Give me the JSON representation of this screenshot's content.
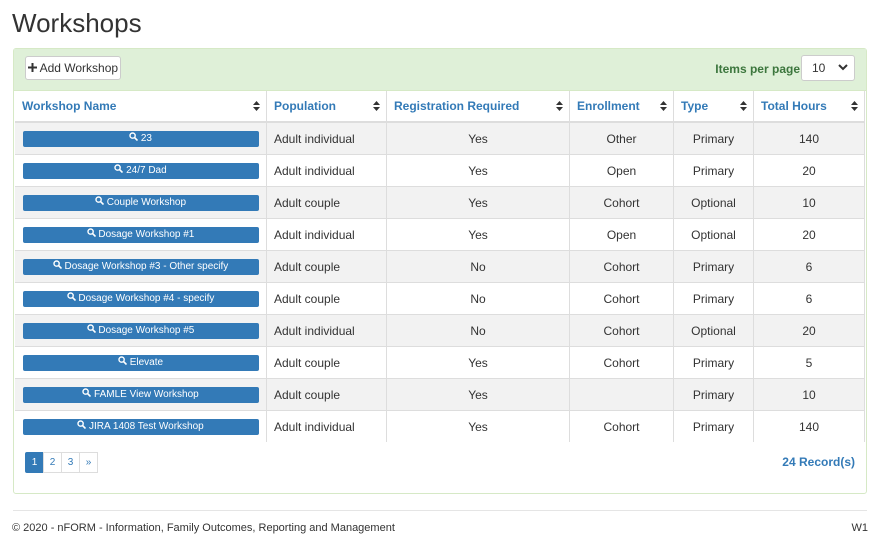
{
  "header": {
    "title": "Workshops"
  },
  "toolbar": {
    "add_button": "Add Workshop",
    "items_per_page_label": "Items per page",
    "items_per_page": 10
  },
  "table": {
    "columns": [
      "Workshop Name",
      "Population",
      "Registration Required",
      "Enrollment",
      "Type",
      "Total Hours"
    ],
    "rows": [
      [
        "23",
        "Adult individual",
        "Yes",
        "Other",
        "Primary",
        140
      ],
      [
        "24/7 Dad",
        "Adult individual",
        "Yes",
        "Open",
        "Primary",
        20
      ],
      [
        "Couple Workshop",
        "Adult couple",
        "Yes",
        "Cohort",
        "Optional",
        10
      ],
      [
        "Dosage Workshop #1",
        "Adult individual",
        "Yes",
        "Open",
        "Optional",
        20
      ],
      [
        "Dosage Workshop #3 - Other specify",
        "Adult couple",
        "No",
        "Cohort",
        "Primary",
        6
      ],
      [
        "Dosage Workshop #4 - specify",
        "Adult couple",
        "No",
        "Cohort",
        "Primary",
        6
      ],
      [
        "Dosage Workshop #5",
        "Adult individual",
        "No",
        "Cohort",
        "Optional",
        20
      ],
      [
        "Elevate",
        "Adult couple",
        "Yes",
        "Cohort",
        "Primary",
        5
      ],
      [
        "FAMLE View Workshop",
        "Adult couple",
        "Yes",
        null,
        "Primary",
        10
      ],
      [
        "JIRA 1408 Test Workshop",
        "Adult individual",
        "Yes",
        "Cohort",
        "Primary",
        140
      ]
    ]
  },
  "pagination": {
    "pages": [
      1,
      2,
      3,
      "»"
    ],
    "records": "24 Record(s)"
  },
  "footer": {
    "copyright": "© 2020 - nFORM - Information, Family Outcomes, Reporting and Management",
    "version": "W1"
  }
}
